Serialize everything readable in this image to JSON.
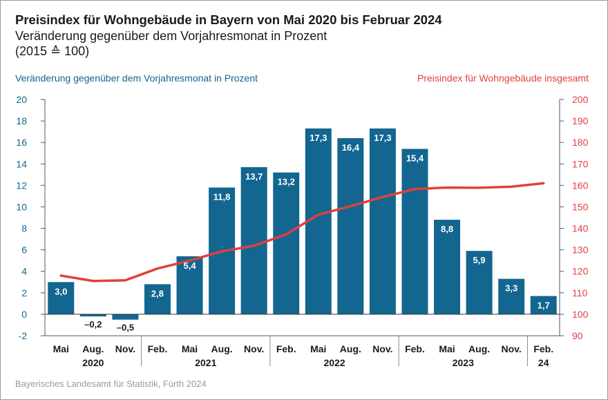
{
  "chart_data": {
    "type": "bar",
    "title": "Preisindex für Wohngebäude in Bayern von Mai 2020 bis Februar 2024",
    "subtitle": "Veränderung gegenüber dem Vorjahresmonat in Prozent",
    "subtitle2": "(2015 ≙ 100)",
    "ylabel_left": "Veränderung gegenüber dem Vorjahresmonat in Prozent",
    "ylabel_right": "Preisindex für Wohngebäude insgesamt",
    "ylim_left": [
      -2,
      20
    ],
    "yticks_left": [
      "-2",
      "0",
      "2",
      "4",
      "6",
      "8",
      "10",
      "12",
      "14",
      "16",
      "18",
      "20"
    ],
    "ylim_right": [
      90,
      200
    ],
    "yticks_right": [
      "90",
      "100",
      "110",
      "120",
      "130",
      "140",
      "150",
      "160",
      "170",
      "180",
      "190",
      "200"
    ],
    "categories": [
      "Mai",
      "Aug.",
      "Nov.",
      "Feb.",
      "Mai",
      "Aug.",
      "Nov.",
      "Feb.",
      "Mai",
      "Aug.",
      "Nov.",
      "Feb.",
      "Mai",
      "Aug.",
      "Nov.",
      "Feb."
    ],
    "year_groups": [
      {
        "label": "2020",
        "start": 0,
        "end": 2
      },
      {
        "label": "2021",
        "start": 3,
        "end": 6
      },
      {
        "label": "2022",
        "start": 7,
        "end": 10
      },
      {
        "label": "2023",
        "start": 11,
        "end": 14
      },
      {
        "label": "24",
        "start": 15,
        "end": 15
      }
    ],
    "series": [
      {
        "name": "Veränderung gegenüber dem Vorjahresmonat in Prozent",
        "type": "bar",
        "axis": "left",
        "color": "#136690",
        "values": [
          3.0,
          -0.2,
          -0.5,
          2.8,
          5.4,
          11.8,
          13.7,
          13.2,
          17.3,
          16.4,
          17.3,
          15.4,
          8.8,
          5.9,
          3.3,
          1.7
        ],
        "labels": [
          "3,0",
          "–0,2",
          "–0,5",
          "2,8",
          "5,4",
          "11,8",
          "13,7",
          "13,2",
          "17,3",
          "16,4",
          "17,3",
          "15,4",
          "8,8",
          "5,9",
          "3,3",
          "1,7"
        ]
      },
      {
        "name": "Preisindex für Wohngebäude insgesamt",
        "type": "line",
        "axis": "right",
        "color": "#e0403a",
        "values": [
          118.0,
          115.5,
          115.8,
          121.3,
          125.0,
          129.3,
          131.9,
          137.2,
          146.4,
          150.3,
          154.6,
          158.3,
          159.0,
          158.9,
          159.4,
          161.0
        ]
      }
    ],
    "grid": false,
    "source": "Bayerisches Landesamt für Statistik, Fürth 2024"
  }
}
